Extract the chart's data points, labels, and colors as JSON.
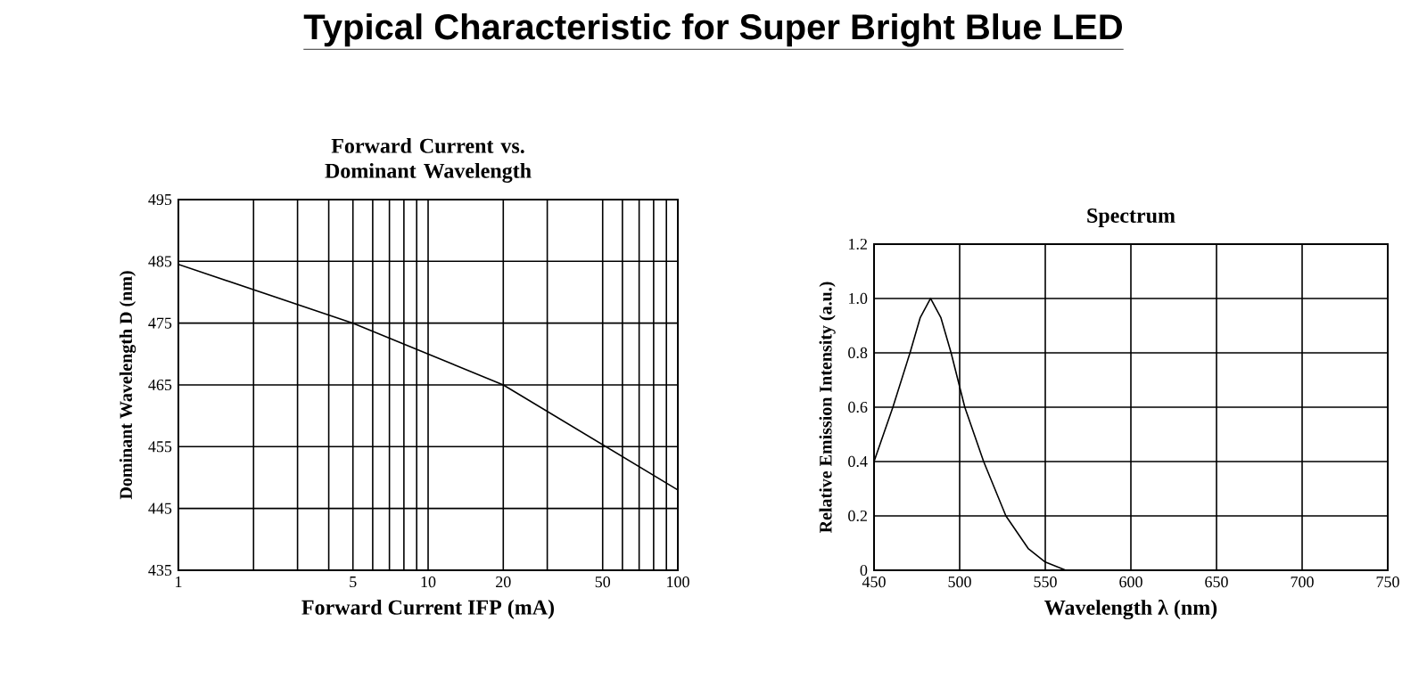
{
  "chart_data": [
    {
      "type": "line",
      "title": "Typical Characteristic for Super Bright Blue LED",
      "subtitle": "Forward Current vs. Dominant Wavelength",
      "xlabel": "Forward Current IFP (mA)",
      "ylabel": "Dominant Wavelength D (nm)",
      "x": [
        1,
        5,
        20,
        100
      ],
      "values": [
        484.5,
        475,
        465,
        448
      ],
      "color": "#000000",
      "log": "x",
      "xlim": [
        1,
        100
      ],
      "ylim": [
        435,
        495
      ],
      "xticks": [
        1,
        {
          "value": 2,
          "label": null
        },
        {
          "value": 3,
          "label": null
        },
        {
          "value": 4,
          "label": null
        },
        5,
        {
          "value": 6,
          "label": null
        },
        {
          "value": 7,
          "label": null
        },
        {
          "value": 8,
          "label": null
        },
        {
          "value": 9,
          "label": null
        },
        10,
        20,
        {
          "value": 30,
          "label": null
        },
        50,
        {
          "value": 60,
          "label": null
        },
        {
          "value": 70,
          "label": null
        },
        {
          "value": 80,
          "label": null
        },
        {
          "value": 90,
          "label": null
        },
        100
      ],
      "yticks": [
        435,
        445,
        455,
        465,
        475,
        485,
        495
      ],
      "grid": true
    },
    {
      "type": "line",
      "title": "Spectrum",
      "xlabel": "Wavelength λ (nm)",
      "ylabel": "Relative Emission Intensity (a.u.)",
      "x": [
        450,
        461,
        471,
        477,
        483,
        489,
        495,
        503,
        514,
        527,
        540,
        550,
        562
      ],
      "values": [
        0.4,
        0.6,
        0.8,
        0.93,
        1.0,
        0.93,
        0.8,
        0.6,
        0.4,
        0.2,
        0.08,
        0.03,
        0
      ],
      "color": "#000000",
      "xlim": [
        450,
        750
      ],
      "ylim": [
        0,
        1.2
      ],
      "xticks": [
        450,
        500,
        550,
        600,
        650,
        700,
        750
      ],
      "yticks": [
        0,
        0.2,
        0.4,
        0.6,
        0.8,
        {
          "value": 1,
          "label": "1.0"
        },
        1.2
      ],
      "grid": true
    }
  ]
}
